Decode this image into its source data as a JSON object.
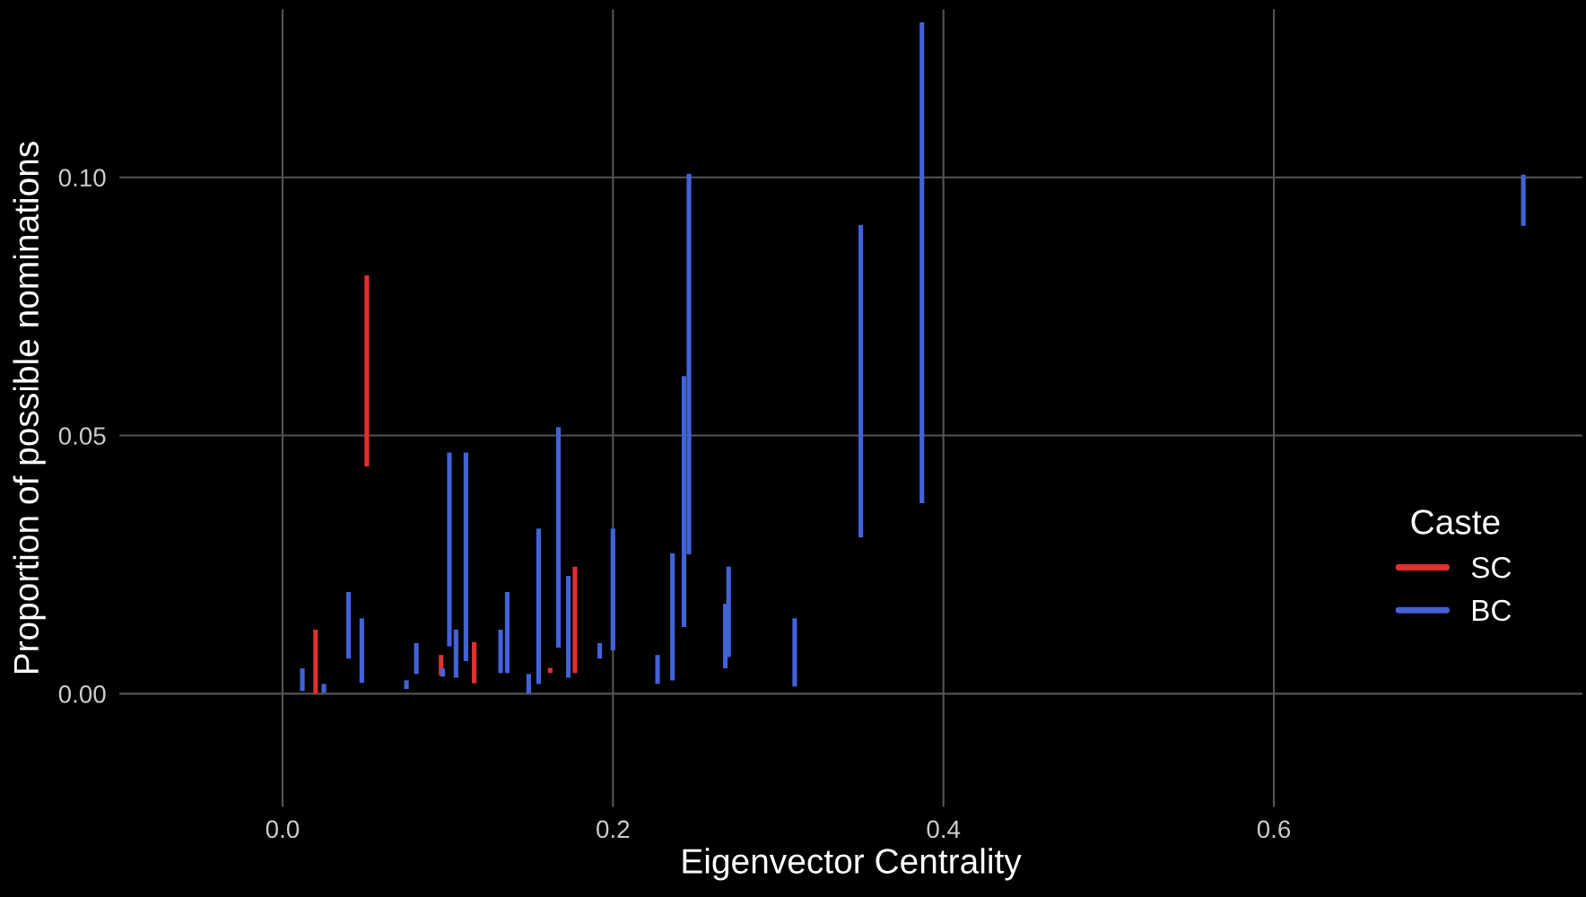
{
  "chart_data": {
    "type": "bar",
    "xlabel": "Eigenvector Centrality",
    "ylabel": "Proportion of possible nominations",
    "legend_title": "Caste",
    "legend": "right",
    "grid": true,
    "xlim": [
      -0.099,
      0.787
    ],
    "xticks": [
      {
        "value": 0,
        "label": "0.0"
      },
      {
        "value": 0.2,
        "label": "0.2"
      },
      {
        "value": 0.4,
        "label": "0.4"
      },
      {
        "value": 0.6,
        "label": "0.6"
      }
    ],
    "ylim": [
      -0.022,
      0.1326
    ],
    "yticks": [
      {
        "value": 0,
        "label": "0.00"
      },
      {
        "value": 0.05,
        "label": "0.05"
      },
      {
        "value": 0.1,
        "label": "0.10"
      }
    ],
    "series": [
      {
        "name": "SC",
        "color": "#e03030",
        "x": [
          0.02,
          0.051,
          0.096,
          0.116,
          0.162,
          0.177
        ],
        "base": [
          0.0,
          0.044,
          0.0035,
          0.002,
          0.004,
          0.004
        ],
        "values": [
          0.0124,
          0.037,
          0.004,
          0.008,
          0.001,
          0.0206
        ]
      },
      {
        "name": "BC",
        "color": "#4262d8",
        "x": [
          0.012,
          0.025,
          0.04,
          0.048,
          0.075,
          0.081,
          0.097,
          0.101,
          0.105,
          0.111,
          0.132,
          0.136,
          0.149,
          0.155,
          0.167,
          0.173,
          0.192,
          0.2,
          0.227,
          0.236,
          0.243,
          0.246,
          0.268,
          0.27,
          0.31,
          0.35,
          0.387,
          0.751
        ],
        "base": [
          0.0005,
          0.0002,
          0.0068,
          0.0021,
          0.0009,
          0.0038,
          0.0033,
          0.0092,
          0.0031,
          0.0063,
          0.004,
          0.004,
          0.0,
          0.0019,
          0.0089,
          0.0031,
          0.0068,
          0.0084,
          0.0019,
          0.0026,
          0.0129,
          0.027,
          0.0049,
          0.0071,
          0.0014,
          0.0303,
          0.0369,
          0.0906
        ],
        "values": [
          0.0044,
          0.0017,
          0.0129,
          0.0125,
          0.0017,
          0.006,
          0.0016,
          0.0375,
          0.0093,
          0.0404,
          0.0084,
          0.0157,
          0.0038,
          0.0301,
          0.0427,
          0.0197,
          0.003,
          0.0236,
          0.0056,
          0.0246,
          0.0486,
          0.0737,
          0.0125,
          0.0175,
          0.0132,
          0.0605,
          0.0931,
          0.0099
        ]
      }
    ]
  }
}
